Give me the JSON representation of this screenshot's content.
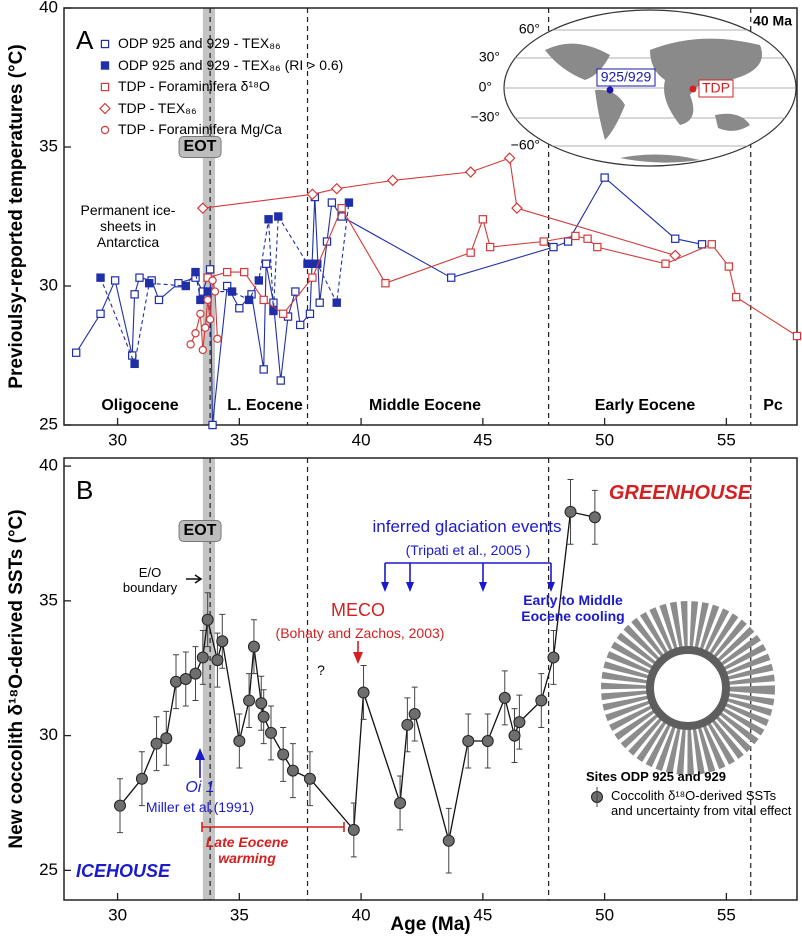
{
  "chart_data": [
    {
      "type": "line",
      "panel_label": "A",
      "ylabel": "Previoulsy-reported temperatures (°C)",
      "xlim": [
        27.8,
        57.9
      ],
      "ylim": [
        25,
        40
      ],
      "xticks": [
        30,
        35,
        40,
        45,
        50,
        55
      ],
      "yticks": [
        25,
        30,
        35,
        40
      ],
      "band": [
        33.5,
        34.0
      ],
      "vlines": [
        33.8,
        37.8,
        47.7,
        56.0
      ],
      "band_label": "EOT",
      "annotations": [
        "Permanent ice-sheets in Antarctica"
      ],
      "epochs": [
        "Oligocene",
        "L. Eocene",
        "Middle Eocene",
        "Early Eocene",
        "Pc"
      ],
      "inset_map": {
        "title": "40 Ma",
        "latitudes": [
          "60°",
          "30°",
          "0°",
          "−30°",
          "−60°"
        ],
        "sites": [
          "925/929",
          "TDP"
        ],
        "site_colors": [
          "#1a1aa8",
          "#d42020"
        ]
      },
      "series": [
        {
          "name": "ODP 925 and 929 - TEX₈₆",
          "color": "#1f2fa8",
          "marker": "square",
          "filled": false,
          "line_style": "solid",
          "x": [
            28.3,
            29.3,
            29.9,
            30.6,
            30.7,
            30.9,
            31.4,
            31.7,
            32.5,
            33.2,
            33.5,
            33.8,
            33.9,
            34.5,
            35.0,
            35.5,
            36.0,
            36.1,
            36.4,
            36.7,
            37.0,
            37.3,
            37.5,
            37.9,
            38.1,
            38.3,
            38.6,
            38.8,
            39.2,
            43.7,
            47.9,
            48.5,
            50.0,
            52.9,
            54.0
          ],
          "values": [
            27.6,
            29.0,
            30.2,
            27.5,
            29.7,
            30.3,
            30.2,
            29.5,
            30.1,
            30.3,
            29.8,
            30.6,
            25.0,
            30.0,
            29.2,
            29.7,
            27.0,
            30.8,
            29.4,
            26.6,
            28.9,
            29.8,
            28.6,
            29.0,
            33.2,
            29.4,
            31.6,
            33.0,
            32.5,
            30.3,
            31.4,
            31.6,
            33.9,
            31.7,
            31.5
          ]
        },
        {
          "name": "ODP 925 and 929 - TEX₈₆ (RI > 0.6)",
          "color": "#1f2fa8",
          "marker": "square",
          "filled": true,
          "line_style": "dashed",
          "x": [
            29.3,
            30.7,
            31.3,
            32.8,
            33.2,
            33.4,
            33.7,
            34.7,
            35.4,
            35.8,
            36.2,
            36.4,
            36.6,
            37.8,
            38.0,
            38.2,
            39.0,
            39.5
          ],
          "values": [
            30.3,
            27.2,
            30.1,
            30.0,
            30.5,
            29.5,
            29.8,
            29.8,
            29.5,
            30.2,
            32.4,
            29.1,
            32.5,
            30.8,
            30.8,
            30.8,
            29.4,
            33.0
          ]
        },
        {
          "name": "TDP - Foraminifera δ¹⁸O",
          "color": "#d43a3a",
          "marker": "square",
          "filled": false,
          "line_style": "solid",
          "x": [
            33.7,
            34.5,
            35.2,
            36.0,
            36.8,
            38.0,
            39.2,
            41.0,
            44.5,
            45.0,
            45.3,
            47.5,
            48.8,
            49.3,
            49.7,
            52.5,
            54.4,
            55.1,
            55.4,
            57.9
          ],
          "values": [
            30.3,
            30.5,
            30.5,
            29.5,
            29.0,
            30.3,
            32.8,
            30.1,
            31.2,
            32.4,
            31.4,
            31.6,
            31.8,
            31.7,
            31.4,
            30.8,
            31.5,
            30.7,
            29.6,
            28.2
          ]
        },
        {
          "name": "TDP - TEX₈₆",
          "color": "#d43a3a",
          "marker": "diamond",
          "filled": false,
          "line_style": "solid",
          "x": [
            33.5,
            38.0,
            39.0,
            41.3,
            44.5,
            46.1,
            46.4,
            52.9
          ],
          "values": [
            32.8,
            33.3,
            33.5,
            33.8,
            34.1,
            34.6,
            32.8,
            31.1
          ]
        },
        {
          "name": "TDP - Foraminifera Mg/Ca",
          "color": "#d43a3a",
          "marker": "circle",
          "filled": false,
          "line_style": "solid",
          "x": [
            33.0,
            33.2,
            33.4,
            33.5,
            33.6,
            33.7,
            33.8,
            33.9,
            34.0,
            34.1
          ],
          "values": [
            27.9,
            28.3,
            29.0,
            27.7,
            28.5,
            29.5,
            28.8,
            30.2,
            29.8,
            28.1
          ]
        }
      ]
    },
    {
      "type": "errorbar",
      "panel_label": "B",
      "ylabel": "New coccolith δ¹⁸O-derived SSTs (°C)",
      "xlabel": "Age (Ma)",
      "xlim": [
        27.8,
        57.9
      ],
      "ylim": [
        23.9,
        40.3
      ],
      "xticks": [
        30,
        35,
        40,
        45,
        50,
        55
      ],
      "yticks": [
        25,
        30,
        35,
        40
      ],
      "band": [
        33.5,
        34.0
      ],
      "vlines": [
        33.8,
        37.8,
        47.7,
        56.0
      ],
      "annotations": [
        "EOT",
        "E/O boundary",
        "GREENHOUSE",
        "ICEHOUSE",
        "inferred glaciation events",
        "(Tripati et al., 2005 )",
        "Early to Middle Eocene cooling",
        "MECO",
        "(Bohaty and Zachos, 2003)",
        "?",
        "Oi 1",
        "Miller et al.(1991)",
        "Late Eocene warming"
      ],
      "legend_title": "Sites ODP 925 and 929",
      "series": [
        {
          "name": "Coccolith δ¹⁸O-derived SSTs and uncertainty from vital effect",
          "color": "#6e6e6e",
          "x": [
            30.1,
            31.0,
            31.6,
            32.0,
            32.4,
            32.8,
            33.2,
            33.5,
            33.7,
            34.1,
            34.3,
            35.0,
            35.4,
            35.6,
            35.9,
            36.0,
            36.3,
            36.8,
            37.2,
            37.9,
            39.7,
            40.1,
            41.6,
            41.9,
            42.2,
            43.6,
            44.4,
            45.2,
            45.9,
            46.3,
            46.5,
            47.4,
            47.9,
            48.6,
            49.6
          ],
          "values": [
            27.4,
            28.4,
            29.7,
            29.9,
            32.0,
            32.1,
            32.3,
            32.9,
            34.3,
            32.8,
            33.5,
            29.8,
            31.3,
            33.3,
            31.2,
            30.7,
            30.1,
            29.3,
            28.7,
            28.4,
            26.5,
            31.6,
            27.5,
            30.4,
            30.8,
            26.1,
            29.8,
            29.8,
            31.4,
            30.0,
            30.5,
            31.3,
            32.9,
            38.3,
            38.1
          ],
          "errors": [
            1.0,
            1.0,
            1.0,
            1.0,
            1.0,
            1.0,
            1.0,
            1.0,
            1.0,
            1.0,
            1.0,
            1.0,
            1.0,
            1.0,
            1.0,
            1.0,
            1.0,
            1.0,
            1.0,
            1.0,
            1.0,
            1.0,
            1.0,
            1.0,
            1.0,
            1.2,
            1.0,
            1.0,
            1.0,
            1.0,
            1.0,
            1.0,
            1.0,
            1.2,
            1.0
          ]
        }
      ]
    }
  ]
}
